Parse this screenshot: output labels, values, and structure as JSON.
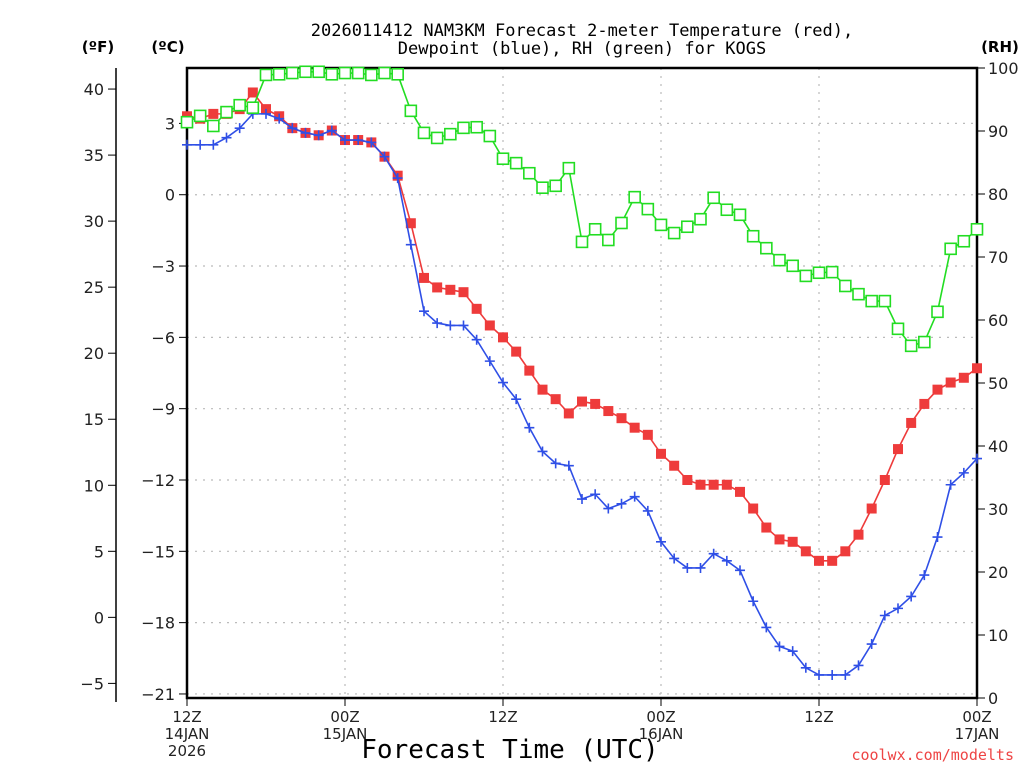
{
  "chart_data": {
    "type": "line",
    "title": [
      "2026011412 NAM3KM Forecast 2-meter Temperature (red),",
      "Dewpoint (blue), RH (green) for KOGS"
    ],
    "xlabel": "Forecast Time (UTC)",
    "credit": "coolwx.com/modelts",
    "x_hours_from_start": {
      "start": 0,
      "end": 60,
      "step": 1
    },
    "x_ticks": [
      {
        "hour": 0,
        "lines": [
          "12Z",
          "14JAN",
          "2026"
        ]
      },
      {
        "hour": 12,
        "lines": [
          "00Z",
          "15JAN"
        ]
      },
      {
        "hour": 24,
        "lines": [
          "12Z"
        ]
      },
      {
        "hour": 36,
        "lines": [
          "00Z",
          "16JAN"
        ]
      },
      {
        "hour": 48,
        "lines": [
          "12Z"
        ]
      },
      {
        "hour": 60,
        "lines": [
          "00Z",
          "17JAN"
        ]
      }
    ],
    "axes": {
      "fahrenheit": {
        "label": "(ºF)",
        "ticks": [
          40,
          35,
          30,
          25,
          20,
          15,
          10,
          5,
          0,
          -5
        ]
      },
      "celsius": {
        "label": "(ºC)",
        "ticks": [
          3,
          0,
          -3,
          -6,
          -9,
          -12,
          -15,
          -18,
          -21
        ],
        "ylim": [
          -21.17,
          5.33
        ]
      },
      "rh": {
        "label": "(RH)",
        "ticks": [
          100,
          90,
          80,
          70,
          60,
          50,
          40,
          30,
          20,
          10,
          0
        ],
        "ylim": [
          0,
          100
        ]
      }
    },
    "grid": true,
    "series": [
      {
        "name": "Temperature",
        "units": "C",
        "color": "#ee3b3b",
        "marker": "filled-square",
        "axis": "celsius",
        "values": [
          3.3,
          3.2,
          3.4,
          3.4,
          3.6,
          4.3,
          3.6,
          3.3,
          2.8,
          2.6,
          2.5,
          2.7,
          2.3,
          2.3,
          2.2,
          1.6,
          0.8,
          -1.2,
          -3.5,
          -3.9,
          -4.0,
          -4.1,
          -4.8,
          -5.5,
          -6.0,
          -6.6,
          -7.4,
          -8.2,
          -8.6,
          -9.2,
          -8.7,
          -8.8,
          -9.1,
          -9.4,
          -9.8,
          -10.1,
          -10.9,
          -11.4,
          -12.0,
          -12.2,
          -12.2,
          -12.2,
          -12.5,
          -13.2,
          -14.0,
          -14.5,
          -14.6,
          -15.0,
          -15.4,
          -15.4,
          -15.0,
          -14.3,
          -13.2,
          -12.0,
          -10.7,
          -9.6,
          -8.8,
          -8.2,
          -7.9,
          -7.7,
          -7.3
        ]
      },
      {
        "name": "Dewpoint",
        "units": "C",
        "color": "#2f4fe6",
        "marker": "plus",
        "axis": "celsius",
        "values": [
          2.1,
          2.1,
          2.1,
          2.4,
          2.8,
          3.4,
          3.4,
          3.2,
          2.8,
          2.6,
          2.5,
          2.7,
          2.3,
          2.3,
          2.2,
          1.6,
          0.7,
          -2.1,
          -4.9,
          -5.4,
          -5.5,
          -5.5,
          -6.1,
          -7.0,
          -7.9,
          -8.6,
          -9.8,
          -10.8,
          -11.3,
          -11.4,
          -12.8,
          -12.6,
          -13.2,
          -13.0,
          -12.7,
          -13.3,
          -14.6,
          -15.3,
          -15.7,
          -15.7,
          -15.1,
          -15.4,
          -15.8,
          -17.1,
          -18.2,
          -19.0,
          -19.2,
          -19.9,
          -20.2,
          -20.2,
          -20.2,
          -19.8,
          -18.9,
          -17.7,
          -17.4,
          -16.9,
          -16.0,
          -14.4,
          -12.2,
          -11.7,
          -11.1
        ]
      },
      {
        "name": "RH",
        "units": "%",
        "color": "#22dd22",
        "marker": "open-square",
        "axis": "rh",
        "values": [
          91.4,
          92.4,
          90.8,
          93.0,
          94.1,
          93.7,
          98.9,
          99.0,
          99.2,
          99.4,
          99.4,
          99.0,
          99.2,
          99.2,
          98.9,
          99.2,
          99.0,
          93.2,
          89.7,
          88.9,
          89.5,
          90.5,
          90.6,
          89.2,
          85.6,
          84.9,
          83.3,
          81.0,
          81.3,
          84.1,
          72.4,
          74.4,
          72.7,
          75.4,
          79.5,
          77.6,
          75.1,
          73.8,
          74.8,
          76.0,
          79.4,
          77.5,
          76.7,
          73.3,
          71.4,
          69.5,
          68.6,
          67.0,
          67.5,
          67.6,
          65.4,
          64.1,
          63.0,
          63.0,
          58.6,
          55.9,
          56.5,
          61.3,
          71.3,
          72.5,
          74.4
        ]
      }
    ]
  }
}
